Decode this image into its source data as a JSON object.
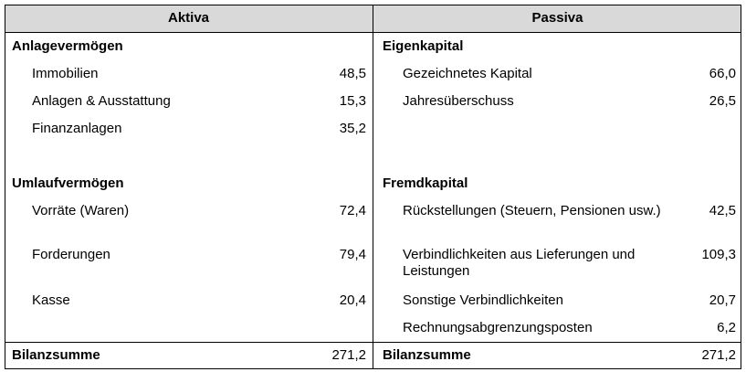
{
  "header": {
    "left": "Aktiva",
    "right": "Passiva"
  },
  "aktiva": {
    "sections": [
      {
        "title": "Anlagevermögen",
        "items": [
          {
            "label": "Immobilien",
            "value": "48,5"
          },
          {
            "label": "Anlagen & Ausstattung",
            "value": "15,3"
          },
          {
            "label": "Finanzanlagen",
            "value": "35,2"
          }
        ]
      },
      {
        "title": "Umlaufvermögen",
        "items": [
          {
            "label": "Vorräte (Waren)",
            "value": "72,4"
          },
          {
            "label": "Forderungen",
            "value": "79,4"
          },
          {
            "label": "Kasse",
            "value": "20,4"
          }
        ]
      }
    ]
  },
  "passiva": {
    "sections": [
      {
        "title": "Eigenkapital",
        "items": [
          {
            "label": "Gezeichnetes Kapital",
            "value": "66,0"
          },
          {
            "label": "Jahresüberschuss",
            "value": "26,5"
          }
        ]
      },
      {
        "title": "Fremdkapital",
        "items": [
          {
            "label": "Rückstellungen (Steuern, Pensionen usw.)",
            "value": "42,5"
          },
          {
            "label": "Verbindlichkeiten aus Lieferungen und Leistungen",
            "value": "109,3"
          },
          {
            "label": "Sonstige Verbindlichkeiten",
            "value": "20,7"
          },
          {
            "label": "Rechnungsabgrenzungsposten",
            "value": "6,2"
          }
        ]
      }
    ]
  },
  "footer": {
    "left": {
      "label": "Bilanzsumme",
      "value": "271,2"
    },
    "right": {
      "label": "Bilanzsumme",
      "value": "271,2"
    }
  }
}
